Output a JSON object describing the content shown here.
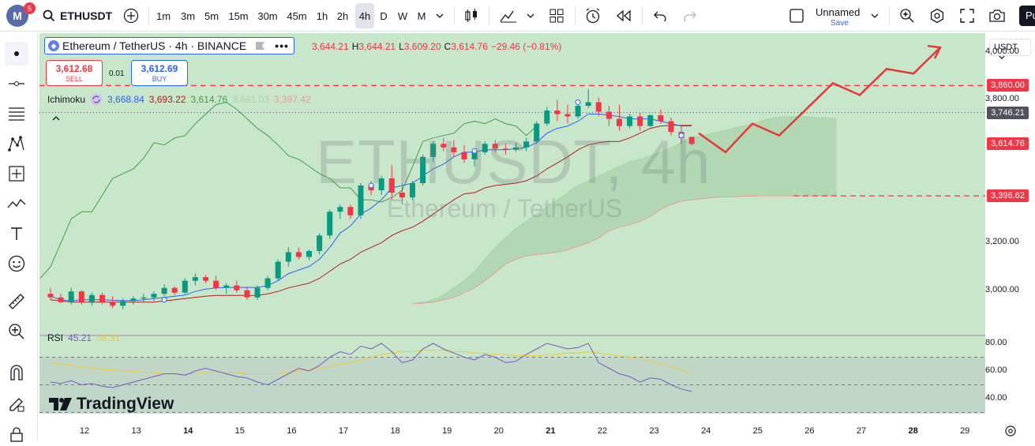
{
  "header": {
    "logo_letter": "M",
    "notification_count": "5",
    "symbol": "ETHUSDT",
    "intervals": [
      "1m",
      "3m",
      "5m",
      "15m",
      "30m",
      "45m",
      "1h",
      "2h",
      "4h",
      "D",
      "W",
      "M"
    ],
    "selected_interval": "4h",
    "layout_name": "Unnamed",
    "layout_save": "Save",
    "publish_label": "Pu"
  },
  "legend": {
    "title": "Ethereum / TetherUS · 4h · BINANCE",
    "ohlc": [
      {
        "k": "",
        "v": "3,644.21"
      },
      {
        "k": "H",
        "v": "3,644.21"
      },
      {
        "k": "L",
        "v": "3,609.20"
      },
      {
        "k": "C",
        "v": "3,614.76"
      },
      {
        "k": "",
        "v": "−29.46 (−0.81%)"
      }
    ],
    "sell_price": "3,612.68",
    "sell_label": "SELL",
    "buy_price": "3,612.69",
    "buy_label": "BUY",
    "spread": "0.01",
    "ichimoku_label": "Ichimoku",
    "ichimoku_values": [
      "3,668.84",
      "3,693.22",
      "3,614.76",
      "3,681.03",
      "3,397.42"
    ],
    "rsi_label": "RSI",
    "rsi_values": [
      "45.21",
      "58.31"
    ]
  },
  "watermark": {
    "symbol": "ETHUSDT, 4h",
    "description": "Ethereum / TetherUS"
  },
  "brand": "TradingView",
  "price_scale": {
    "currency": "USDT",
    "ticks": [
      "4,000.00",
      "3,800.00",
      "3,200.00",
      "3,000.00"
    ],
    "labels": [
      {
        "text": "3,860.00",
        "color": "#f23645",
        "price": 3860
      },
      {
        "text": "3,746.21",
        "color": "#50535e",
        "price": 3746.21
      },
      {
        "text": "3,614.76",
        "color": "#f23645",
        "price": 3614.76
      },
      {
        "text": "3,396.62",
        "color": "#f23645",
        "price": 3396.62
      }
    ],
    "rsi_ticks": [
      "80.00",
      "60.00",
      "40.00"
    ]
  },
  "time_scale": {
    "labels": [
      {
        "t": "12",
        "b": false
      },
      {
        "t": "13",
        "b": false
      },
      {
        "t": "14",
        "b": true
      },
      {
        "t": "15",
        "b": false
      },
      {
        "t": "16",
        "b": false
      },
      {
        "t": "17",
        "b": false
      },
      {
        "t": "18",
        "b": false
      },
      {
        "t": "19",
        "b": false
      },
      {
        "t": "20",
        "b": false
      },
      {
        "t": "21",
        "b": true
      },
      {
        "t": "22",
        "b": false
      },
      {
        "t": "23",
        "b": false
      },
      {
        "t": "24",
        "b": false
      },
      {
        "t": "25",
        "b": false
      },
      {
        "t": "26",
        "b": false
      },
      {
        "t": "27",
        "b": false
      },
      {
        "t": "28",
        "b": true
      },
      {
        "t": "29",
        "b": false
      }
    ]
  },
  "chart_data": {
    "type": "candlestick",
    "symbol": "ETHUSDT",
    "timeframe": "4h",
    "y_range": [
      2820,
      4080
    ],
    "candles": [
      [
        2985,
        3010,
        2960,
        2970
      ],
      [
        2970,
        2985,
        2945,
        2950
      ],
      [
        2950,
        3010,
        2940,
        2995
      ],
      [
        2995,
        3000,
        2940,
        2950
      ],
      [
        2950,
        2990,
        2935,
        2980
      ],
      [
        2980,
        2990,
        2940,
        2950
      ],
      [
        2950,
        2975,
        2925,
        2935
      ],
      [
        2935,
        2965,
        2920,
        2955
      ],
      [
        2955,
        2975,
        2940,
        2965
      ],
      [
        2965,
        2985,
        2950,
        2970
      ],
      [
        2970,
        2995,
        2955,
        2985
      ],
      [
        2985,
        3025,
        2975,
        3010
      ],
      [
        3010,
        3015,
        2980,
        2990
      ],
      [
        2990,
        3050,
        2985,
        3040
      ],
      [
        3040,
        3070,
        3020,
        3055
      ],
      [
        3055,
        3065,
        3030,
        3040
      ],
      [
        3040,
        3060,
        3000,
        3010
      ],
      [
        3010,
        3030,
        2985,
        3020
      ],
      [
        3020,
        3040,
        2990,
        3000
      ],
      [
        3000,
        3015,
        2960,
        2970
      ],
      [
        2970,
        3020,
        2960,
        3010
      ],
      [
        3010,
        3060,
        3000,
        3050
      ],
      [
        3050,
        3130,
        3040,
        3120
      ],
      [
        3120,
        3180,
        3100,
        3160
      ],
      [
        3160,
        3180,
        3130,
        3140
      ],
      [
        3140,
        3170,
        3125,
        3165
      ],
      [
        3165,
        3240,
        3150,
        3230
      ],
      [
        3230,
        3340,
        3215,
        3330
      ],
      [
        3330,
        3360,
        3300,
        3350
      ],
      [
        3350,
        3360,
        3300,
        3315
      ],
      [
        3315,
        3450,
        3300,
        3440
      ],
      [
        3440,
        3460,
        3400,
        3420
      ],
      [
        3420,
        3480,
        3400,
        3470
      ],
      [
        3470,
        3525,
        3380,
        3410
      ],
      [
        3410,
        3450,
        3360,
        3390
      ],
      [
        3390,
        3460,
        3380,
        3450
      ],
      [
        3450,
        3570,
        3440,
        3560
      ],
      [
        3560,
        3625,
        3540,
        3615
      ],
      [
        3615,
        3640,
        3585,
        3600
      ],
      [
        3600,
        3630,
        3560,
        3580
      ],
      [
        3580,
        3610,
        3535,
        3550
      ],
      [
        3550,
        3590,
        3520,
        3580
      ],
      [
        3580,
        3625,
        3570,
        3615
      ],
      [
        3615,
        3630,
        3580,
        3595
      ],
      [
        3595,
        3615,
        3570,
        3590
      ],
      [
        3590,
        3620,
        3580,
        3600
      ],
      [
        3600,
        3640,
        3585,
        3625
      ],
      [
        3625,
        3710,
        3615,
        3700
      ],
      [
        3700,
        3770,
        3690,
        3755
      ],
      [
        3755,
        3800,
        3710,
        3740
      ],
      [
        3740,
        3780,
        3700,
        3730
      ],
      [
        3730,
        3790,
        3720,
        3775
      ],
      [
        3775,
        3845,
        3765,
        3790
      ],
      [
        3790,
        3810,
        3730,
        3750
      ],
      [
        3750,
        3775,
        3690,
        3720
      ],
      [
        3720,
        3780,
        3670,
        3690
      ],
      [
        3690,
        3740,
        3680,
        3730
      ],
      [
        3730,
        3745,
        3670,
        3690
      ],
      [
        3690,
        3740,
        3685,
        3735
      ],
      [
        3735,
        3760,
        3700,
        3710
      ],
      [
        3710,
        3725,
        3650,
        3665
      ],
      [
        3665,
        3690,
        3615,
        3640
      ],
      [
        3644.21,
        3644.21,
        3609.2,
        3614.76
      ]
    ],
    "tenkan": [
      2975,
      2960,
      2955,
      2960,
      2960,
      2960,
      2958,
      2957,
      2957,
      2960,
      2965,
      2970,
      2975,
      2980,
      2995,
      3005,
      3010,
      3012,
      3012,
      3012,
      3012,
      3020,
      3040,
      3070,
      3085,
      3100,
      3130,
      3180,
      3240,
      3270,
      3320,
      3345,
      3380,
      3430,
      3440,
      3450,
      3480,
      3510,
      3530,
      3560,
      3580,
      3580,
      3590,
      3590,
      3590,
      3595,
      3600,
      3620,
      3660,
      3680,
      3690,
      3710,
      3740,
      3740,
      3735,
      3730,
      3720,
      3720,
      3720,
      3710,
      3700,
      3690,
      3690
    ],
    "kijun": [
      2960,
      2955,
      2950,
      2950,
      2950,
      2950,
      2950,
      2950,
      2950,
      2950,
      2950,
      2955,
      2960,
      2965,
      2970,
      2975,
      2978,
      2978,
      2978,
      2978,
      2978,
      2985,
      2995,
      3010,
      3020,
      3030,
      3050,
      3080,
      3110,
      3130,
      3160,
      3180,
      3200,
      3230,
      3250,
      3265,
      3290,
      3320,
      3350,
      3380,
      3405,
      3410,
      3430,
      3440,
      3445,
      3450,
      3460,
      3480,
      3510,
      3535,
      3560,
      3590,
      3610,
      3620,
      3625,
      3625,
      3640,
      3660,
      3680,
      3690,
      3693,
      3693,
      3693
    ],
    "chikou": [
      3050,
      3100,
      3200,
      3300,
      3330,
      3330,
      3400,
      3470,
      3490,
      3510,
      3555,
      3620,
      3610,
      3640,
      3650,
      3700,
      3740,
      3780,
      3790,
      3760,
      3720,
      3680,
      3650,
      3610,
      3565,
      3550,
      3520,
      3490,
      3470,
      3430,
      3430,
      3380,
      3380,
      3370,
      3390,
      3420,
      3520,
      3625,
      3640,
      3650,
      3660,
      3700,
      3710,
      3700,
      3720,
      3700,
      3690,
      3650,
      3690
    ],
    "span_a": [
      2945,
      2950,
      2960,
      2980,
      3010,
      3040,
      3080,
      3130,
      3180,
      3220,
      3260,
      3290,
      3320,
      3350,
      3380,
      3410,
      3440,
      3460,
      3480,
      3500,
      3520,
      3540,
      3550,
      3565,
      3580,
      3600,
      3620,
      3640,
      3650,
      3660,
      3670,
      3680,
      3690,
      3700,
      3715,
      3725,
      3730,
      3730,
      3730,
      3725,
      3725,
      3720
    ],
    "span_b": [
      2945,
      2945,
      2950,
      2960,
      2970,
      2990,
      3010,
      3040,
      3075,
      3110,
      3130,
      3145,
      3150,
      3155,
      3160,
      3170,
      3185,
      3200,
      3220,
      3250,
      3265,
      3275,
      3290,
      3310,
      3340,
      3360,
      3375,
      3380,
      3385,
      3390,
      3392,
      3393,
      3395,
      3396,
      3397,
      3397,
      3397,
      3397,
      3397,
      3397,
      3397,
      3397
    ],
    "rsi": [
      52,
      51,
      53,
      50,
      51,
      49,
      48,
      50,
      52,
      54,
      56,
      58,
      58,
      57,
      60,
      62,
      60,
      58,
      56,
      55,
      52,
      50,
      54,
      58,
      62,
      60,
      64,
      70,
      74,
      72,
      78,
      76,
      80,
      74,
      66,
      68,
      76,
      80,
      76,
      73,
      70,
      68,
      72,
      70,
      66,
      67,
      72,
      76,
      80,
      78,
      76,
      77,
      80,
      66,
      62,
      58,
      56,
      52,
      55,
      54,
      50,
      47,
      45.21
    ],
    "rsi_ma": [
      66,
      65,
      64,
      63,
      62,
      61,
      61,
      60,
      60,
      59,
      59,
      58,
      58,
      58,
      58,
      59,
      59,
      59,
      59,
      58,
      58,
      58,
      58,
      59,
      60,
      61,
      62,
      63,
      65,
      66,
      68,
      70,
      72,
      73,
      74,
      74,
      75,
      75,
      75,
      74,
      74,
      73,
      73,
      72,
      72,
      71,
      71,
      71,
      72,
      72,
      73,
      73,
      74,
      73,
      72,
      71,
      70,
      69,
      67,
      65,
      63,
      61,
      58.31
    ],
    "forecast_path": [
      [
        3660,
        0
      ],
      [
        3580,
        1
      ],
      [
        3700,
        2
      ],
      [
        3650,
        3
      ],
      [
        3760,
        4
      ],
      [
        3870,
        5
      ],
      [
        3820,
        6
      ],
      [
        3930,
        7
      ],
      [
        3910,
        8
      ],
      [
        4020,
        9
      ]
    ],
    "levels": [
      3860.0,
      3396.62
    ]
  }
}
